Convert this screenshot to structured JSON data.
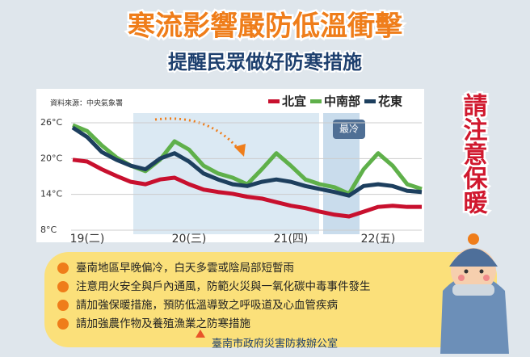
{
  "header": {
    "title": "寒流影響嚴防低溫衝擊",
    "subtitle": "提醒民眾做好防寒措施",
    "side_note": "請注意保暖"
  },
  "chart_data": {
    "type": "line",
    "source": "資料來源：中央氣象署",
    "annotation": "最冷",
    "categories": [
      null,
      "19(二)",
      null,
      null,
      null,
      null,
      null,
      null,
      "20(三)",
      null,
      null,
      null,
      null,
      null,
      null,
      "21(四)",
      null,
      null,
      null,
      null,
      null,
      "22(五)",
      null,
      null,
      null
    ],
    "series": [
      {
        "name": "北宜",
        "color": "#c8102e",
        "values": [
          19.8,
          19.5,
          18.2,
          17.1,
          16.1,
          15.7,
          16.5,
          16.8,
          15.7,
          14.8,
          14.4,
          14.1,
          13.6,
          13.3,
          12.7,
          12.1,
          11.7,
          11.1,
          10.6,
          10.3,
          11.1,
          11.9,
          12.1,
          11.9,
          11.9
        ]
      },
      {
        "name": "中南部",
        "color": "#5fb04a",
        "values": [
          25.6,
          24.6,
          22.2,
          20.2,
          18.8,
          17.9,
          19.8,
          22.9,
          21.5,
          18.8,
          17.5,
          16.8,
          15.7,
          18.2,
          20.9,
          18.8,
          16.5,
          15.7,
          15.2,
          14.1,
          18.2,
          20.9,
          18.8,
          15.7,
          14.9
        ]
      },
      {
        "name": "花東",
        "color": "#1d3f5e",
        "values": [
          25.2,
          23.6,
          21.1,
          19.8,
          18.8,
          18.2,
          20.0,
          20.9,
          19.5,
          17.5,
          16.5,
          15.7,
          15.4,
          16.1,
          16.5,
          16.1,
          15.4,
          14.9,
          14.4,
          13.8,
          15.4,
          15.7,
          15.4,
          14.6,
          14.4
        ]
      }
    ],
    "ylim": [
      8,
      26
    ],
    "yticks": [
      {
        "value": 26,
        "label": "26°C"
      },
      {
        "value": 20,
        "label": "20°C"
      },
      {
        "value": 14,
        "label": "14°C"
      },
      {
        "value": 8,
        "label": "8°C"
      }
    ],
    "grid": true
  },
  "bullets": [
    "臺南地區早晚偏冷，白天多雲或陰局部短暫雨",
    "注意用火安全與戶內通風，防範火災與一氧化碳中毒事件發生",
    "請加強保暖措施，預防低溫導致之呼吸道及心血管疾病",
    "請加強農作物及養殖漁業之防寒措施"
  ],
  "footer": "臺南市政府災害防救辦公室"
}
